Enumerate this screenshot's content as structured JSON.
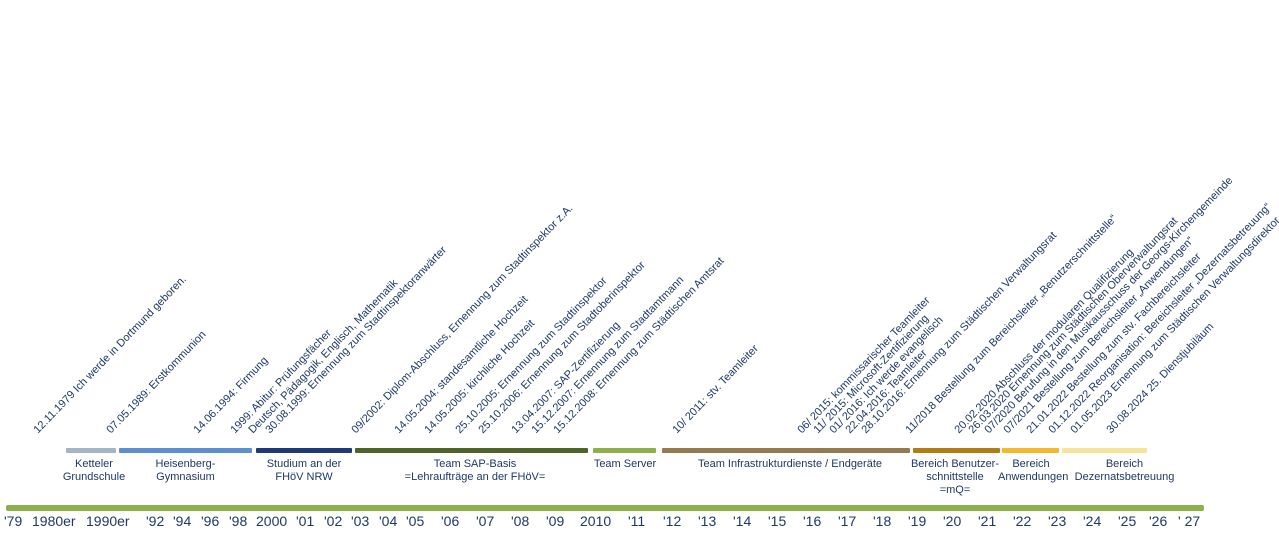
{
  "timeline": {
    "events": [
      "12.11.1979 Ich werde in Dortmund geboren.",
      "07.05.1989: Erstkommunion",
      "14.06.1994: Firmung",
      "1999: Abitur: Prüfungsfächer",
      "Deutsch, Pädagogik, Englisch, Mathematik",
      "30.08.1999: Ernennung zum Stadtinspektoranwärter",
      "09/2002: Diplom-Abschluss, Ernennung zum Stadtinspektor z.A.",
      "14.05.2004: standesamtliche Hochzeit",
      "14.05.2005: kirchliche Hochzeit",
      "25.10.2005: Ernennung zum Stadtinspektor",
      "25.10.2006: Ernennung zum Stadtoberinspektor",
      "13.04.2007: SAP-Zertifizierung",
      "15.12.2007: Ernennung zum Stadtamtmann",
      "15.12.2008: Ernennung zum Städtischen Amtsrat",
      "10/ 2011: stv. Teamleiter",
      "06/ 2015: kommissarischer Teamleiter",
      "11/ 2015: Microsoft-Zertifizierung",
      "01/ 2016: Ich werde evangelisch",
      "22.04.2016: Teamleiter",
      "28.10.2016: Ernennung zum Städtischen Verwaltungsrat",
      "11/2018 Bestellung zum Bereichsleiter „Benutzerschnittstelle“",
      "20.02.2020 Abschluss der modularen Qualifizierung",
      "26.03.2020 Ernennung zum Städtischen Oberverwaltungsrat",
      "07/2020 Berufung in den Musikausschuss der Georgs-Kirchengemeinde",
      "07/2021 Bestellung zum Bereichsleiter „Anwendungen“",
      "21.01.2022 Bestellung zum stv. Fachbereichsleiter",
      "01.12.2022 Reorganisation: Bereichsleiter „Dezernatsbetreuung“",
      "01.05.2023 Ernennung zum Städtischen Verwaltungsdirektor",
      "30.08.2024 25. Dienstjubiläum"
    ],
    "phases": [
      {
        "label": "Ketteler Grundschule",
        "color": "#a6b4c8"
      },
      {
        "label": "Heisenberg-Gymnasium",
        "color": "#5b8fd2"
      },
      {
        "label": "Studium an der FHöV NRW",
        "color": "#1f3a78"
      },
      {
        "label": "Team SAP-Basis =Lehraufträge an der FHöV=",
        "color": "#4f6228"
      },
      {
        "label": "Team Server",
        "color": "#8db04a"
      },
      {
        "label": "Team Infrastrukturdienste / Endgeräte",
        "color": "#947b4f"
      },
      {
        "label": "Bereich Benutzer-schnittstelle =mQ=",
        "color": "#b07c14"
      },
      {
        "label": "Bereich Anwendungen",
        "color": "#f2b82e"
      },
      {
        "label": "Bereich Dezernatsbetreuung",
        "color": "#f5e49a"
      }
    ],
    "years": [
      "'79",
      "1980er",
      "1990er",
      "'92",
      "'94",
      "'96",
      "'98",
      "2000",
      "'01",
      "'02",
      "'03",
      "'04",
      "'05",
      "'06",
      "'07",
      "'08",
      "'09",
      "2010",
      "'11",
      "'12",
      "'13",
      "'14",
      "'15",
      "'16",
      "'17",
      "'18",
      "'19",
      "'20",
      "'21",
      "'22",
      "'23",
      "'24",
      "'25",
      "'26",
      "' 27"
    ]
  }
}
